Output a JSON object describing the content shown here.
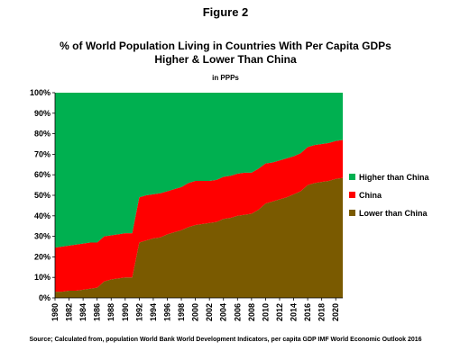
{
  "figure_label": "Figure 2",
  "chart_data": {
    "type": "area",
    "stacked": true,
    "title": "% of World Population Living in Countries With Per Capita GDPs Higher & Lower Than China",
    "title_lines": [
      "% of World Population Living in Countries With Per Capita GDPs",
      "Higher & Lower Than China"
    ],
    "subtitle": "in PPPs",
    "xlabel": "",
    "ylabel": "",
    "ylim": [
      0,
      100
    ],
    "yticks": [
      "0%",
      "10%",
      "20%",
      "30%",
      "40%",
      "50%",
      "60%",
      "70%",
      "80%",
      "90%",
      "100%"
    ],
    "xticks": [
      "1980",
      "1982",
      "1984",
      "1986",
      "1988",
      "1990",
      "1992",
      "1994",
      "1996",
      "1998",
      "2000",
      "2002",
      "2004",
      "2006",
      "2008",
      "2010",
      "2012",
      "2014",
      "2016",
      "2018",
      "2020"
    ],
    "grid": false,
    "legend_position": "right",
    "x": [
      1980,
      1981,
      1982,
      1983,
      1984,
      1985,
      1986,
      1987,
      1988,
      1989,
      1990,
      1991,
      1992,
      1993,
      1994,
      1995,
      1996,
      1997,
      1998,
      1999,
      2000,
      2001,
      2002,
      2003,
      2004,
      2005,
      2006,
      2007,
      2008,
      2009,
      2010,
      2011,
      2012,
      2013,
      2014,
      2015,
      2016,
      2017,
      2018,
      2019,
      2020,
      2021
    ],
    "series": [
      {
        "name": "Lower than China",
        "color": "#7a5a00",
        "values": [
          3,
          3,
          3.5,
          3.5,
          4,
          4.5,
          5,
          8,
          9,
          9.5,
          10,
          10,
          27,
          28,
          29,
          29.5,
          31,
          32,
          33,
          34.5,
          35.5,
          36,
          36.5,
          37,
          38.5,
          39,
          40,
          40.5,
          41,
          43,
          46,
          47,
          48,
          49,
          50.5,
          52,
          55,
          56,
          56.5,
          57,
          58,
          58.5
        ]
      },
      {
        "name": "China",
        "color": "#ff0000",
        "values": [
          21.5,
          22,
          22,
          22.5,
          22.5,
          22.5,
          22,
          22,
          21.5,
          21.5,
          21.5,
          21.5,
          22,
          22,
          21.5,
          21.5,
          21,
          21,
          21,
          21.5,
          21.5,
          21,
          20.5,
          20.5,
          20.5,
          20.5,
          20.5,
          20.5,
          20,
          20,
          19.5,
          19,
          19,
          19,
          18.5,
          18.5,
          18.5,
          18.5,
          18.5,
          18.5,
          18.5,
          18.5
        ]
      },
      {
        "name": "Higher than China",
        "color": "#00b050",
        "values": [
          75.5,
          75,
          74.5,
          74,
          73.5,
          73,
          73,
          70,
          69.5,
          69,
          68.5,
          68.5,
          51,
          50,
          49.5,
          49,
          48,
          47,
          46,
          44,
          43,
          43,
          43,
          42.5,
          41,
          40.5,
          39.5,
          39,
          39,
          37,
          34.5,
          34,
          33,
          32,
          31,
          29.5,
          26.5,
          25.5,
          25,
          24.5,
          23.5,
          23
        ]
      }
    ],
    "legend_order": [
      "Higher than China",
      "China",
      "Lower than China"
    ]
  },
  "source": "Source; Calculated from, population World Bank World Development Indicators, per capita GDP IMF World Economic Outlook 2016"
}
